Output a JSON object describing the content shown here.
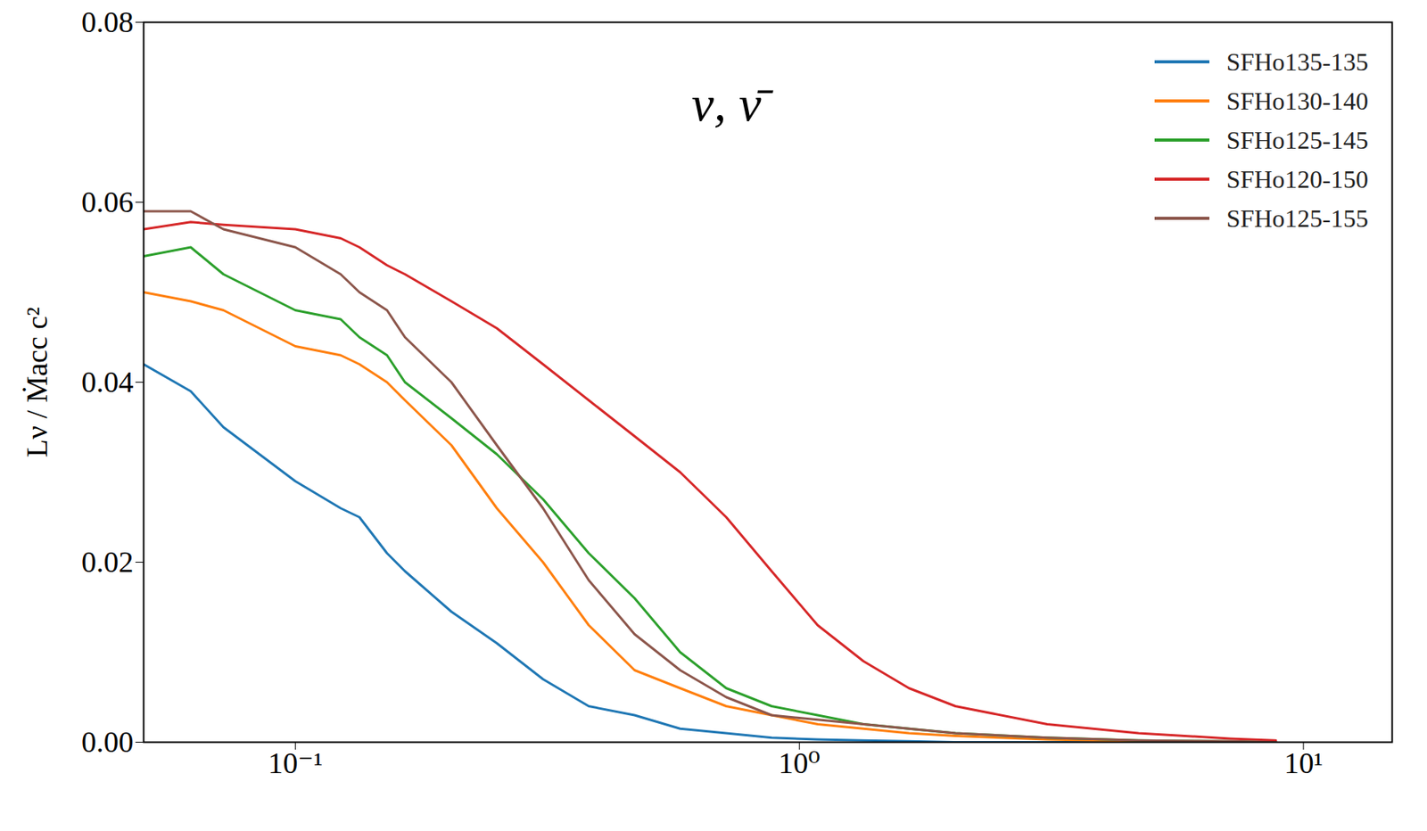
{
  "chart_data": {
    "type": "line",
    "y_label": "Lν / Ṁacc c²",
    "annotations": [
      "ν, ν̄"
    ],
    "log": "x",
    "grid": false,
    "legend": "top-right",
    "xlim": [
      0.05,
      15
    ],
    "ylim": [
      0,
      0.08
    ],
    "xticks": [
      {
        "value": 0.1,
        "label": "10⁻¹"
      },
      {
        "value": 1,
        "label": "10⁰"
      },
      {
        "value": 10,
        "label": "10¹"
      }
    ],
    "yticks": [
      {
        "value": 0,
        "label": "0.00"
      },
      {
        "value": 0.02,
        "label": "0.02"
      },
      {
        "value": 0.04,
        "label": "0.04"
      },
      {
        "value": 0.06,
        "label": "0.06"
      },
      {
        "value": 0.08,
        "label": "0.08"
      }
    ],
    "x": [
      0.05,
      0.062,
      0.072,
      0.1,
      0.123,
      0.134,
      0.152,
      0.165,
      0.204,
      0.251,
      0.31,
      0.382,
      0.471,
      0.58,
      0.716,
      0.881,
      1.087,
      1.34,
      1.65,
      2.04,
      3.1,
      4.71,
      7.16,
      8.82
    ],
    "series": [
      {
        "name": "SFHo135-135",
        "color": "#1f77b4",
        "values": [
          0.042,
          0.039,
          0.035,
          0.029,
          0.026,
          0.025,
          0.021,
          0.019,
          0.0145,
          0.011,
          0.007,
          0.004,
          0.003,
          0.0015,
          0.001,
          0.0005,
          0.0003,
          0.0002,
          0.0001,
          0,
          0,
          0,
          0,
          0
        ]
      },
      {
        "name": "SFHo130-140",
        "color": "#ff7f0e",
        "values": [
          0.05,
          0.049,
          0.048,
          0.044,
          0.043,
          0.042,
          0.04,
          0.038,
          0.033,
          0.026,
          0.02,
          0.013,
          0.008,
          0.006,
          0.004,
          0.003,
          0.002,
          0.0015,
          0.001,
          0.0007,
          0.0003,
          0.0001,
          0,
          0
        ]
      },
      {
        "name": "SFHo125-145",
        "color": "#2ca02c",
        "values": [
          0.054,
          0.055,
          0.052,
          0.048,
          0.047,
          0.045,
          0.043,
          0.04,
          0.036,
          0.032,
          0.027,
          0.021,
          0.016,
          0.01,
          0.006,
          0.004,
          0.003,
          0.002,
          0.0015,
          0.001,
          0.0005,
          0.0002,
          0.0001,
          0
        ]
      },
      {
        "name": "SFHo120-150",
        "color": "#d62728",
        "values": [
          0.057,
          0.0578,
          0.0575,
          0.057,
          0.056,
          0.055,
          0.053,
          0.052,
          0.049,
          0.046,
          0.042,
          0.038,
          0.034,
          0.03,
          0.025,
          0.019,
          0.013,
          0.009,
          0.006,
          0.004,
          0.002,
          0.001,
          0.0004,
          0.0002
        ]
      },
      {
        "name": "SFHo125-155",
        "color": "#8c564b",
        "values": [
          0.059,
          0.059,
          0.057,
          0.055,
          0.052,
          0.05,
          0.048,
          0.045,
          0.04,
          0.033,
          0.026,
          0.018,
          0.012,
          0.008,
          0.005,
          0.003,
          0.0025,
          0.002,
          0.0015,
          0.001,
          0.0005,
          0.0002,
          0.0001,
          0
        ]
      }
    ]
  }
}
